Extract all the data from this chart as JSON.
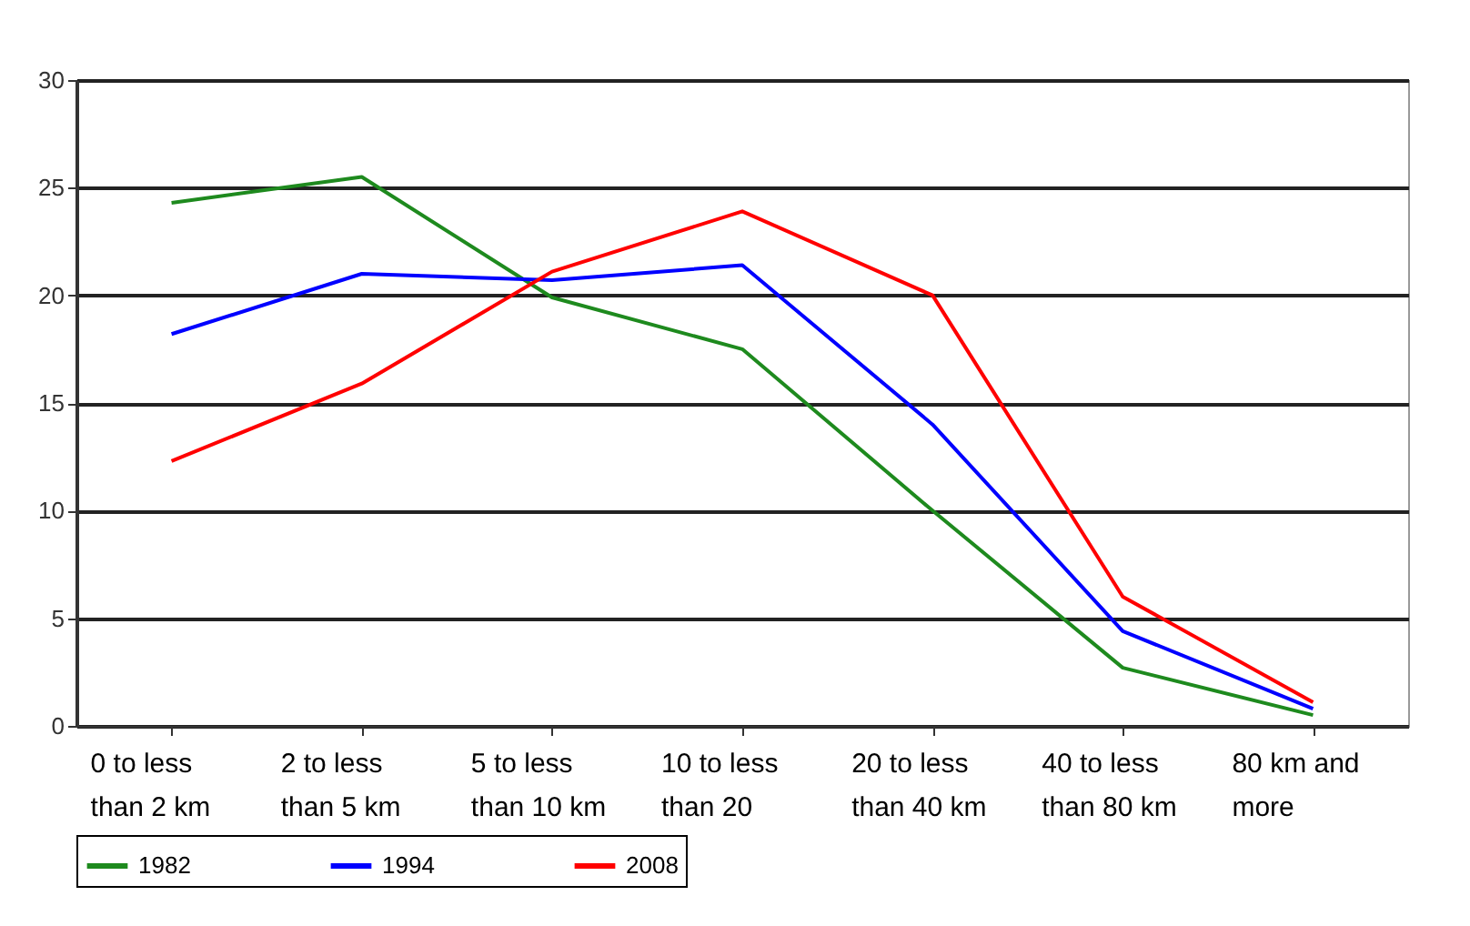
{
  "chart_data": {
    "type": "line",
    "categories": [
      "0 to less\nthan  2 km",
      "2 to less\nthan 5 km",
      "5 to less\nthan 10 km",
      "10 to less\nthan 20",
      "20 to less\nthan 40 km",
      "40 to less\nthan 80 km",
      "80 km and\nmore"
    ],
    "series": [
      {
        "name": "1982",
        "color": "#1e8a1e",
        "values": [
          24.3,
          25.5,
          19.9,
          17.5,
          10,
          2.7,
          0.5
        ]
      },
      {
        "name": "1994",
        "color": "#0000ff",
        "values": [
          18.2,
          21.0,
          20.7,
          21.4,
          14,
          4.4,
          0.8
        ]
      },
      {
        "name": "2008",
        "color": "#ff0000",
        "values": [
          12.3,
          15.9,
          21.1,
          23.9,
          20.0,
          6.0,
          1.1
        ]
      }
    ],
    "ylim": [
      0,
      30
    ],
    "yticks": [
      0,
      5,
      10,
      15,
      20,
      25,
      30
    ],
    "grid": "y",
    "legend": "bottom",
    "marker": "none",
    "line_style": "solid"
  }
}
